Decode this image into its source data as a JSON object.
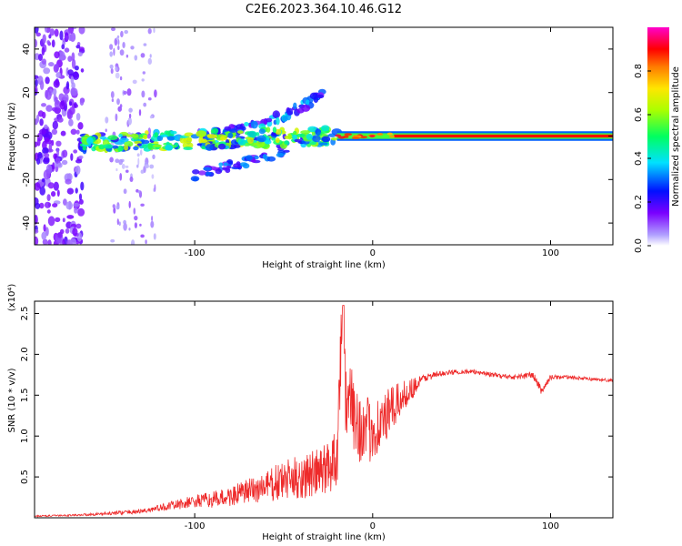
{
  "chart_data": [
    {
      "type": "heatmap",
      "title": "C2E6.2023.364.10.46.G12",
      "xlabel": "Height of straight line (km)",
      "ylabel": "Frequency (Hz)",
      "xlim": [
        -190,
        135
      ],
      "ylim": [
        -50,
        50
      ],
      "xticks": [
        -100,
        0,
        100
      ],
      "xtick_labels": [
        "-100",
        "0",
        "100"
      ],
      "yticks": [
        -40,
        -20,
        0,
        20,
        40
      ],
      "ytick_labels": [
        "-40",
        "-20",
        "0",
        "20",
        "40"
      ],
      "colorbar": {
        "label": "Normalized spectral amplitude",
        "range": [
          0,
          1
        ],
        "ticks": [
          0.0,
          0.2,
          0.4,
          0.6,
          0.8
        ],
        "tick_labels": [
          "0.0",
          "0.2",
          "0.4",
          "0.6",
          "0.8"
        ]
      },
      "features": [
        {
          "name": "noise band",
          "x_range": [
            -190,
            -163
          ],
          "freq_range": [
            -50,
            50
          ],
          "amplitude": 0.15
        },
        {
          "name": "scattered noise",
          "x_range": [
            -150,
            -122
          ],
          "freq_range": [
            -50,
            50
          ],
          "amplitude": 0.05
        },
        {
          "name": "broad signal",
          "x_range": [
            -163,
            -20
          ],
          "freq_center": -2,
          "amplitude": 0.45
        },
        {
          "name": "upper branch",
          "x_range": [
            -100,
            -28
          ],
          "freq_range": [
            0,
            20
          ],
          "amplitude": 0.25
        },
        {
          "name": "lower branch",
          "x_range": [
            -100,
            -45
          ],
          "freq_range": [
            -20,
            -5
          ],
          "amplitude": 0.2
        },
        {
          "name": "clean carrier",
          "x_range": [
            -20,
            135
          ],
          "freq_center": 0,
          "amplitude": 0.95
        }
      ],
      "colors": {
        "low": "#7a00ff",
        "mid": "#00e1ff",
        "high": "#ff0000",
        "peak": "#ff00cc"
      }
    },
    {
      "type": "line",
      "title": "",
      "xlabel": "Height of straight line (km)",
      "ylabel": "SNR (10 * v/v)",
      "y_multiplier_label": "(x10⁴)",
      "xlim": [
        -190,
        135
      ],
      "ylim": [
        0,
        2.65
      ],
      "xticks": [
        -100,
        0,
        100
      ],
      "xtick_labels": [
        "-100",
        "0",
        "100"
      ],
      "yticks": [
        0.5,
        1.0,
        1.5,
        2.0,
        2.5
      ],
      "ytick_labels": [
        "0.5",
        "1.0",
        "1.5",
        "2.0",
        "2.5"
      ],
      "line_color": "#ee2a2a",
      "x": [
        -190,
        -170,
        -150,
        -130,
        -120,
        -110,
        -100,
        -90,
        -80,
        -70,
        -60,
        -50,
        -40,
        -30,
        -25,
        -20,
        -17,
        -15,
        -10,
        -5,
        0,
        5,
        10,
        20,
        30,
        40,
        50,
        60,
        70,
        80,
        90,
        95,
        100,
        110,
        120,
        135
      ],
      "values": [
        0.02,
        0.03,
        0.05,
        0.08,
        0.12,
        0.16,
        0.2,
        0.22,
        0.26,
        0.32,
        0.38,
        0.45,
        0.5,
        0.55,
        0.62,
        0.8,
        2.6,
        1.4,
        1.3,
        1.0,
        1.1,
        1.15,
        1.3,
        1.55,
        1.72,
        1.77,
        1.79,
        1.78,
        1.74,
        1.72,
        1.75,
        1.55,
        1.72,
        1.72,
        1.7,
        1.68
      ],
      "noise_amplitude": [
        0.01,
        0.01,
        0.02,
        0.03,
        0.04,
        0.06,
        0.08,
        0.1,
        0.12,
        0.16,
        0.2,
        0.25,
        0.28,
        0.3,
        0.35,
        0.45,
        0.4,
        0.5,
        0.5,
        0.45,
        0.4,
        0.35,
        0.3,
        0.15,
        0.05,
        0.03,
        0.03,
        0.03,
        0.03,
        0.03,
        0.05,
        0.05,
        0.03,
        0.02,
        0.02,
        0.02
      ]
    }
  ]
}
